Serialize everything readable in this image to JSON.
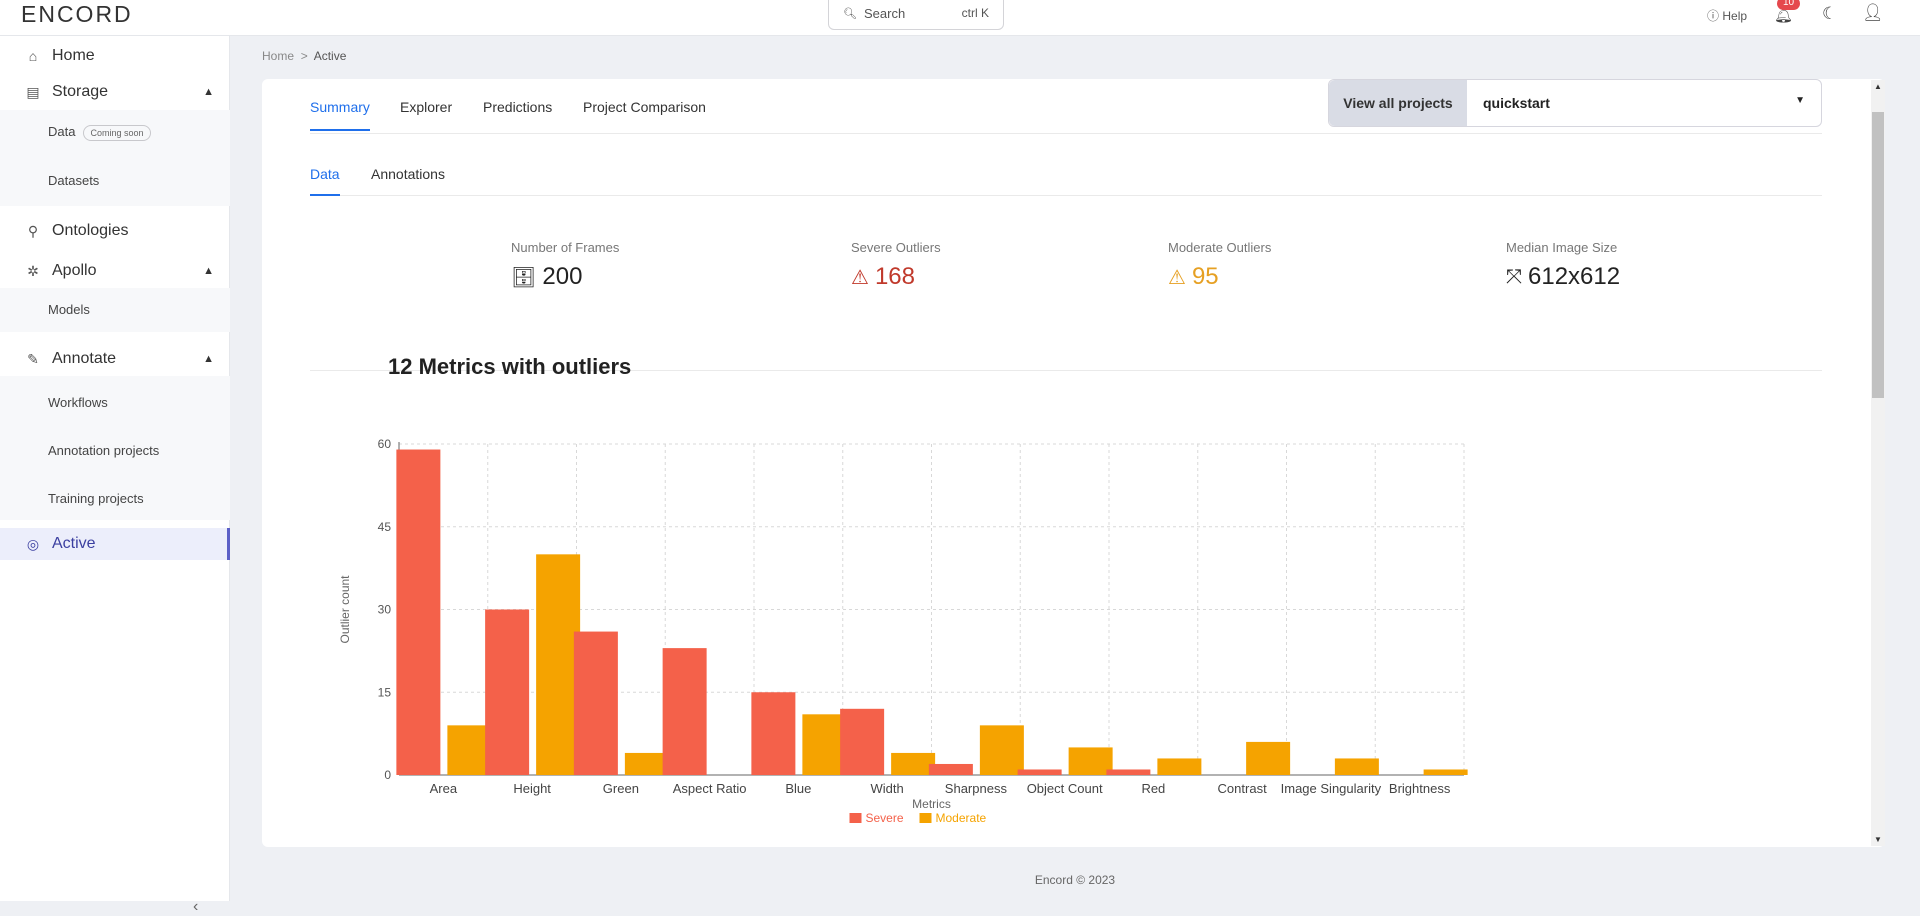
{
  "topbar": {
    "logo": "ENCORD",
    "search_label": "Search",
    "search_shortcut": "ctrl K",
    "help_label": "Help",
    "notifications_count": "10"
  },
  "sidebar": {
    "home": "Home",
    "storage": "Storage",
    "storage_items": [
      {
        "label": "Data",
        "badge": "Coming soon"
      },
      {
        "label": "Datasets"
      }
    ],
    "ontologies": "Ontologies",
    "apollo": "Apollo",
    "apollo_items": [
      {
        "label": "Models"
      }
    ],
    "annotate": "Annotate",
    "annotate_items": [
      {
        "label": "Workflows"
      },
      {
        "label": "Annotation projects"
      },
      {
        "label": "Training projects"
      }
    ],
    "active": "Active"
  },
  "breadcrumb": {
    "home": "Home",
    "sep": ">",
    "current": "Active"
  },
  "tabs": [
    "Summary",
    "Explorer",
    "Predictions",
    "Project Comparison"
  ],
  "selected_tab": "Summary",
  "project_selector": {
    "button": "View all projects",
    "value": "quickstart"
  },
  "subtabs": [
    "Data",
    "Annotations"
  ],
  "stats": [
    {
      "label": "Number of Frames",
      "value": "200",
      "color": "#222222"
    },
    {
      "label": "Severe Outliers",
      "value": "168",
      "color": "#c0392b"
    },
    {
      "label": "Moderate Outliers",
      "value": "95",
      "color": "#e6a023"
    },
    {
      "label": "Median Image Size",
      "value": "612x612",
      "color": "#222222"
    }
  ],
  "section_title": "12 Metrics with outliers",
  "chart_data": {
    "type": "bar",
    "categories": [
      "Area",
      "Height",
      "Green",
      "Aspect Ratio",
      "Blue",
      "Width",
      "Sharpness",
      "Object Count",
      "Red",
      "Contrast",
      "Image Singularity",
      "Brightness"
    ],
    "series": [
      {
        "name": "Severe",
        "color": "#f4614a",
        "values": [
          59,
          30,
          26,
          23,
          15,
          12,
          2,
          1,
          1,
          0,
          0,
          0
        ]
      },
      {
        "name": "Moderate",
        "color": "#f5a300",
        "values": [
          9,
          40,
          4,
          0,
          11,
          4,
          9,
          5,
          3,
          6,
          3,
          1
        ]
      }
    ],
    "xlabel": "Metrics",
    "ylabel": "Outlier count",
    "ylim": [
      0,
      60
    ],
    "yticks": [
      "0",
      "15",
      "30",
      "45",
      "60"
    ],
    "grid": true,
    "legend": "bottom-center"
  },
  "footer": "Encord © 2023"
}
